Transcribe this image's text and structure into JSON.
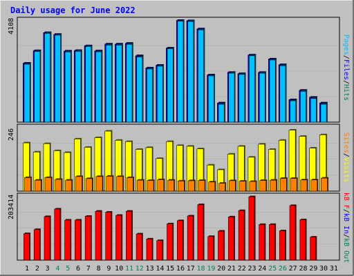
{
  "title": "Daily usage for June 2022",
  "colors": {
    "background": "#c0c0c0",
    "title": "#0000ff",
    "hits": "#00805c",
    "files": "#0000ff",
    "pages": "#00c0ff",
    "visits": "#ffff00",
    "sites": "#ff8000",
    "kbin": "#ff0000",
    "kbout": "#00805c",
    "kbf": "#ff0000"
  },
  "chart_data": [
    {
      "type": "bar",
      "panel": "requests",
      "categories": [
        "1",
        "2",
        "3",
        "4",
        "5",
        "6",
        "7",
        "8",
        "9",
        "10",
        "11",
        "12",
        "13",
        "14",
        "15",
        "16",
        "17",
        "18",
        "19",
        "20",
        "21",
        "22",
        "23",
        "24",
        "25",
        "26",
        "27",
        "28",
        "29",
        "30",
        "31"
      ],
      "ylim": [
        0,
        4108
      ],
      "y_tick_label": "4108",
      "series": [
        {
          "name": "Hits",
          "values": [
            2370,
            2875,
            3600,
            3530,
            2860,
            2880,
            3070,
            2865,
            3140,
            3140,
            3170,
            2670,
            2180,
            2290,
            2980,
            4090,
            4080,
            3750,
            1900,
            770,
            2000,
            1950,
            2700,
            2000,
            2540,
            2310,
            900,
            1280,
            1000,
            770,
            null
          ]
        },
        {
          "name": "Files",
          "values": [
            2370,
            2875,
            3600,
            3530,
            2860,
            2880,
            3070,
            2865,
            3140,
            3140,
            3170,
            2670,
            2180,
            2290,
            2980,
            4090,
            4080,
            3750,
            1900,
            770,
            2000,
            1950,
            2700,
            2000,
            2540,
            2310,
            900,
            1280,
            1000,
            770,
            null
          ]
        },
        {
          "name": "Pages",
          "values": [
            2330,
            2840,
            3570,
            3500,
            2820,
            2850,
            3040,
            2830,
            3100,
            3100,
            3130,
            2620,
            2140,
            2250,
            2950,
            4060,
            4050,
            3710,
            1860,
            720,
            1970,
            1920,
            2670,
            1970,
            2500,
            2270,
            860,
            1240,
            950,
            720,
            null
          ]
        }
      ],
      "legend": [
        "Pages",
        "Files",
        "Hits"
      ]
    },
    {
      "type": "bar",
      "panel": "visitors",
      "categories": [
        "1",
        "2",
        "3",
        "4",
        "5",
        "6",
        "7",
        "8",
        "9",
        "10",
        "11",
        "12",
        "13",
        "14",
        "15",
        "16",
        "17",
        "18",
        "19",
        "20",
        "21",
        "22",
        "23",
        "24",
        "25",
        "26",
        "27",
        "28",
        "29",
        "30",
        "31"
      ],
      "ylim": [
        0,
        246
      ],
      "y_tick_label": "246",
      "series": [
        {
          "name": "Visits",
          "values": [
            185,
            150,
            182,
            155,
            148,
            200,
            168,
            205,
            230,
            195,
            190,
            160,
            167,
            125,
            190,
            175,
            172,
            162,
            100,
            82,
            142,
            172,
            130,
            180,
            160,
            195,
            234,
            210,
            165,
            216,
            null
          ]
        },
        {
          "name": "Sites",
          "values": [
            52,
            42,
            52,
            45,
            42,
            56,
            48,
            56,
            57,
            56,
            52,
            42,
            41,
            44,
            42,
            39,
            40,
            41,
            35,
            30,
            40,
            38,
            37,
            41,
            42,
            49,
            49,
            43,
            43,
            50,
            null
          ]
        }
      ],
      "legend": [
        "Sites",
        "Visits"
      ]
    },
    {
      "type": "bar",
      "panel": "kbytes",
      "categories": [
        "1",
        "2",
        "3",
        "4",
        "5",
        "6",
        "7",
        "8",
        "9",
        "10",
        "11",
        "12",
        "13",
        "14",
        "15",
        "16",
        "17",
        "18",
        "19",
        "20",
        "21",
        "22",
        "23",
        "24",
        "25",
        "26",
        "27",
        "28",
        "29",
        "30",
        "31"
      ],
      "ylim": [
        0,
        203414
      ],
      "y_tick_label": "203414",
      "series": [
        {
          "name": "kB In",
          "values": [
            84000,
            97000,
            138000,
            162000,
            127000,
            127000,
            139000,
            155000,
            152000,
            142000,
            155000,
            83000,
            67000,
            62000,
            115000,
            125000,
            140000,
            176000,
            75000,
            92000,
            137000,
            157000,
            201000,
            113000,
            113000,
            93000,
            173000,
            128000,
            73000,
            null,
            null
          ]
        }
      ],
      "legend": [
        "kB F",
        "kB In",
        "kB Out"
      ]
    }
  ],
  "x_labels": [
    "1",
    "2",
    "3",
    "4",
    "5",
    "6",
    "7",
    "8",
    "9",
    "10",
    "11",
    "12",
    "13",
    "14",
    "15",
    "16",
    "17",
    "18",
    "19",
    "20",
    "21",
    "22",
    "23",
    "24",
    "25",
    "26",
    "27",
    "28",
    "29",
    "30",
    "31"
  ],
  "weekend_days": [
    4,
    5,
    11,
    12,
    18,
    19,
    25,
    26
  ],
  "legends": {
    "top": [
      {
        "text": "Pages",
        "color": "#00c0ff"
      },
      {
        "text": "/",
        "color": "#000000"
      },
      {
        "text": "Files",
        "color": "#0000ff"
      },
      {
        "text": "/",
        "color": "#000000"
      },
      {
        "text": "Hits",
        "color": "#00805c"
      }
    ],
    "middle": [
      {
        "text": "Sites",
        "color": "#ff8000"
      },
      {
        "text": "/",
        "color": "#000000"
      },
      {
        "text": "Visits",
        "color": "#ffff00"
      }
    ],
    "bottom": [
      {
        "text": "kB F",
        "color": "#ff0000"
      },
      {
        "text": "/",
        "color": "#000000"
      },
      {
        "text": "kB In",
        "color": "#0000ff"
      },
      {
        "text": "/",
        "color": "#000000"
      },
      {
        "text": "kB Out",
        "color": "#00805c"
      }
    ]
  }
}
